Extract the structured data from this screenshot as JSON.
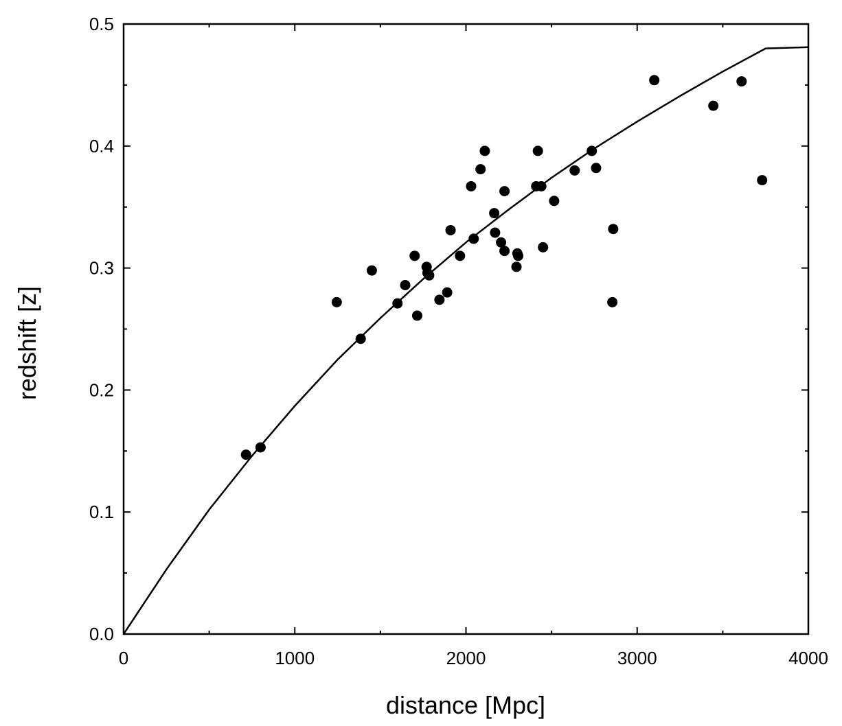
{
  "chart_data": {
    "type": "scatter",
    "xlabel": "distance [Mpc]",
    "ylabel": "redshift [z]",
    "xlim": [
      0,
      4000
    ],
    "ylim": [
      0,
      0.5
    ],
    "x_ticks": [
      "0",
      "1000",
      "2000",
      "3000",
      "4000"
    ],
    "y_ticks": [
      "0.0",
      "0.1",
      "0.2",
      "0.3",
      "0.4",
      "0.5"
    ],
    "grid": false,
    "legend": "none",
    "colors": {
      "points": "#000000",
      "curve": "#000000",
      "axes": "#000000"
    },
    "series": [
      {
        "kind": "points",
        "points": [
          {
            "x": 715,
            "y": 0.147
          },
          {
            "x": 800,
            "y": 0.153
          },
          {
            "x": 1245,
            "y": 0.272
          },
          {
            "x": 1385,
            "y": 0.242
          },
          {
            "x": 1450,
            "y": 0.298
          },
          {
            "x": 1600,
            "y": 0.271
          },
          {
            "x": 1645,
            "y": 0.286
          },
          {
            "x": 1700,
            "y": 0.31
          },
          {
            "x": 1715,
            "y": 0.261
          },
          {
            "x": 1770,
            "y": 0.301
          },
          {
            "x": 1775,
            "y": 0.296
          },
          {
            "x": 1785,
            "y": 0.294
          },
          {
            "x": 1845,
            "y": 0.274
          },
          {
            "x": 1890,
            "y": 0.28
          },
          {
            "x": 1910,
            "y": 0.331
          },
          {
            "x": 1965,
            "y": 0.31
          },
          {
            "x": 2030,
            "y": 0.367
          },
          {
            "x": 2045,
            "y": 0.324
          },
          {
            "x": 2085,
            "y": 0.381
          },
          {
            "x": 2110,
            "y": 0.396
          },
          {
            "x": 2165,
            "y": 0.345
          },
          {
            "x": 2170,
            "y": 0.329
          },
          {
            "x": 2205,
            "y": 0.321
          },
          {
            "x": 2225,
            "y": 0.363
          },
          {
            "x": 2225,
            "y": 0.314
          },
          {
            "x": 2295,
            "y": 0.301
          },
          {
            "x": 2300,
            "y": 0.312
          },
          {
            "x": 2305,
            "y": 0.31
          },
          {
            "x": 2410,
            "y": 0.367
          },
          {
            "x": 2420,
            "y": 0.396
          },
          {
            "x": 2440,
            "y": 0.367
          },
          {
            "x": 2450,
            "y": 0.317
          },
          {
            "x": 2515,
            "y": 0.355
          },
          {
            "x": 2635,
            "y": 0.38
          },
          {
            "x": 2735,
            "y": 0.396
          },
          {
            "x": 2760,
            "y": 0.382
          },
          {
            "x": 2855,
            "y": 0.272
          },
          {
            "x": 2860,
            "y": 0.332
          },
          {
            "x": 3100,
            "y": 0.454
          },
          {
            "x": 3445,
            "y": 0.433
          },
          {
            "x": 3610,
            "y": 0.453
          },
          {
            "x": 3730,
            "y": 0.372
          }
        ]
      },
      {
        "kind": "curve",
        "points": [
          {
            "x": 0,
            "y": 0.0
          },
          {
            "x": 250,
            "y": 0.053
          },
          {
            "x": 500,
            "y": 0.102
          },
          {
            "x": 750,
            "y": 0.146
          },
          {
            "x": 1000,
            "y": 0.187
          },
          {
            "x": 1250,
            "y": 0.225
          },
          {
            "x": 1500,
            "y": 0.259
          },
          {
            "x": 1750,
            "y": 0.291
          },
          {
            "x": 2000,
            "y": 0.321
          },
          {
            "x": 2250,
            "y": 0.348
          },
          {
            "x": 2500,
            "y": 0.374
          },
          {
            "x": 2750,
            "y": 0.398
          },
          {
            "x": 3000,
            "y": 0.42
          },
          {
            "x": 3250,
            "y": 0.441
          },
          {
            "x": 3500,
            "y": 0.461
          },
          {
            "x": 3750,
            "y": 0.48
          },
          {
            "x": 4000,
            "y": 0.481
          }
        ]
      }
    ]
  }
}
